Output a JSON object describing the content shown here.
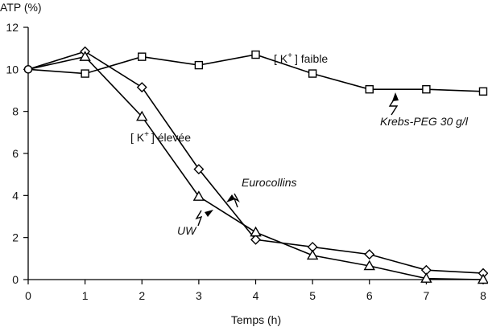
{
  "chart_data": {
    "type": "line",
    "title": "",
    "xlabel": "Temps (h)",
    "ylabel": "ATP (%)",
    "xlim": [
      0,
      8
    ],
    "ylim": [
      0,
      12
    ],
    "xticks": [
      0,
      1,
      2,
      3,
      4,
      5,
      6,
      7,
      8
    ],
    "yticks": [
      0,
      2,
      4,
      6,
      8,
      10,
      12
    ],
    "grid": false,
    "series": [
      {
        "name": "Krebs-PEG 30 g/l",
        "marker": "square",
        "x": [
          0,
          1,
          2,
          3,
          4,
          5,
          6,
          7,
          8
        ],
        "y": [
          10.0,
          9.8,
          10.6,
          10.2,
          10.7,
          9.8,
          9.05,
          9.05,
          8.95
        ]
      },
      {
        "name": "Eurocollins",
        "marker": "diamond",
        "x": [
          0,
          1,
          2,
          3,
          4,
          5,
          6,
          7,
          8
        ],
        "y": [
          10.0,
          10.85,
          9.15,
          5.25,
          1.9,
          1.55,
          1.2,
          0.45,
          0.3
        ]
      },
      {
        "name": "UW",
        "marker": "triangle",
        "x": [
          0,
          1,
          2,
          3,
          4,
          5,
          6,
          7,
          8
        ],
        "y": [
          10.0,
          10.6,
          7.75,
          3.95,
          2.25,
          1.15,
          0.65,
          0.05,
          0.0
        ]
      }
    ],
    "annotations": {
      "k_faible": {
        "prefix": "[ K",
        "sup": "+",
        "suffix": "] faible"
      },
      "k_elevee": {
        "prefix": "[ K",
        "sup": "+",
        "suffix": "] élevée"
      },
      "krebs": "Krebs-PEG 30 g/l",
      "eurocollins": "Eurocollins",
      "uw": "UW"
    }
  }
}
